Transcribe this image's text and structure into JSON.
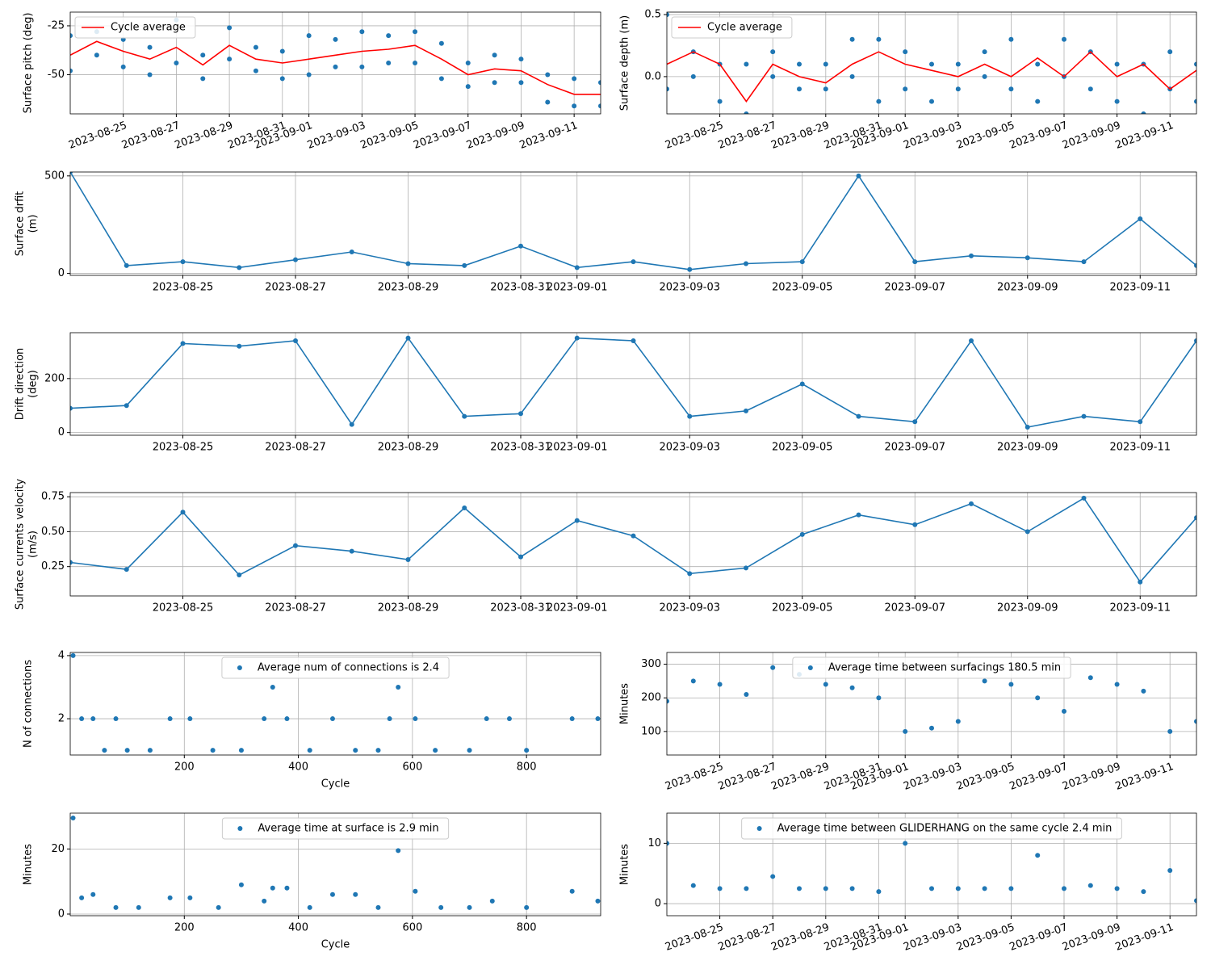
{
  "chart_data": [
    {
      "type": "line",
      "ylabel": "Surface pitch (deg)",
      "xlim": [
        "2023-08-23",
        "2023-09-12"
      ],
      "ylim": [
        -70,
        -18
      ],
      "yticks": [
        -25,
        -50
      ],
      "xticks": [
        "2023-08-25",
        "2023-08-27",
        "2023-08-29",
        "2023-08-31",
        "2023-09-01",
        "2023-09-03",
        "2023-09-05",
        "2023-09-07",
        "2023-09-09",
        "2023-09-11"
      ],
      "xtick_rotation": 20,
      "grid": true,
      "legend": "upper left",
      "series": [
        {
          "style": "markers",
          "color": "#1f77b4",
          "x": [
            "2023-08-23",
            "2023-08-23",
            "2023-08-24",
            "2023-08-24",
            "2023-08-25",
            "2023-08-25",
            "2023-08-26",
            "2023-08-26",
            "2023-08-27",
            "2023-08-27",
            "2023-08-28",
            "2023-08-28",
            "2023-08-29",
            "2023-08-29",
            "2023-08-30",
            "2023-08-30",
            "2023-08-31",
            "2023-08-31",
            "2023-09-01",
            "2023-09-01",
            "2023-09-02",
            "2023-09-02",
            "2023-09-03",
            "2023-09-03",
            "2023-09-04",
            "2023-09-04",
            "2023-09-05",
            "2023-09-05",
            "2023-09-06",
            "2023-09-06",
            "2023-09-07",
            "2023-09-07",
            "2023-09-08",
            "2023-09-08",
            "2023-09-09",
            "2023-09-09",
            "2023-09-10",
            "2023-09-10",
            "2023-09-11",
            "2023-09-11",
            "2023-09-12",
            "2023-09-12"
          ],
          "values": [
            -30,
            -48,
            -28,
            -40,
            -32,
            -46,
            -36,
            -50,
            -22,
            -44,
            -40,
            -52,
            -26,
            -42,
            -36,
            -48,
            -38,
            -52,
            -30,
            -50,
            -32,
            -46,
            -28,
            -46,
            -30,
            -44,
            -28,
            -44,
            -34,
            -52,
            -44,
            -56,
            -40,
            -54,
            -42,
            -54,
            -50,
            -64,
            -52,
            -66,
            -54,
            -66
          ]
        },
        {
          "name": "Cycle average",
          "style": "line",
          "color": "#ff0000",
          "x": [
            "2023-08-23",
            "2023-08-24",
            "2023-08-25",
            "2023-08-26",
            "2023-08-27",
            "2023-08-28",
            "2023-08-29",
            "2023-08-30",
            "2023-08-31",
            "2023-09-01",
            "2023-09-02",
            "2023-09-03",
            "2023-09-04",
            "2023-09-05",
            "2023-09-06",
            "2023-09-07",
            "2023-09-08",
            "2023-09-09",
            "2023-09-10",
            "2023-09-11",
            "2023-09-12"
          ],
          "values": [
            -40,
            -33,
            -38,
            -42,
            -36,
            -45,
            -35,
            -42,
            -44,
            -42,
            -40,
            -38,
            -37,
            -35,
            -42,
            -50,
            -47,
            -48,
            -55,
            -60,
            -60
          ]
        }
      ]
    },
    {
      "type": "line",
      "ylabel": "Surface depth (m)",
      "xlim": [
        "2023-08-23",
        "2023-09-12"
      ],
      "ylim": [
        -0.3,
        0.52
      ],
      "yticks": [
        {
          "value": 0,
          "label": "0.0"
        },
        {
          "value": 0.5,
          "label": "0.5"
        }
      ],
      "xticks": [
        "2023-08-25",
        "2023-08-27",
        "2023-08-29",
        "2023-08-31",
        "2023-09-01",
        "2023-09-03",
        "2023-09-05",
        "2023-09-07",
        "2023-09-09",
        "2023-09-11"
      ],
      "xtick_rotation": 20,
      "grid": true,
      "legend": "upper left",
      "series": [
        {
          "style": "markers",
          "color": "#1f77b4",
          "x": [
            "2023-08-23",
            "2023-08-23",
            "2023-08-24",
            "2023-08-24",
            "2023-08-25",
            "2023-08-25",
            "2023-08-26",
            "2023-08-26",
            "2023-08-27",
            "2023-08-27",
            "2023-08-28",
            "2023-08-28",
            "2023-08-29",
            "2023-08-29",
            "2023-08-30",
            "2023-08-30",
            "2023-08-31",
            "2023-08-31",
            "2023-09-01",
            "2023-09-01",
            "2023-09-02",
            "2023-09-02",
            "2023-09-03",
            "2023-09-03",
            "2023-09-04",
            "2023-09-04",
            "2023-09-05",
            "2023-09-05",
            "2023-09-06",
            "2023-09-06",
            "2023-09-07",
            "2023-09-07",
            "2023-09-08",
            "2023-09-08",
            "2023-09-09",
            "2023-09-09",
            "2023-09-10",
            "2023-09-10",
            "2023-09-11",
            "2023-09-11",
            "2023-09-12",
            "2023-09-12"
          ],
          "values": [
            0.5,
            -0.1,
            0.2,
            0,
            0.1,
            -0.2,
            0.1,
            -0.3,
            0.2,
            0,
            0.1,
            -0.1,
            0.1,
            -0.1,
            0.3,
            0,
            0.3,
            -0.2,
            0.2,
            -0.1,
            0.1,
            -0.2,
            0.1,
            -0.1,
            0.2,
            0,
            0.3,
            -0.1,
            0.1,
            -0.2,
            0.3,
            0,
            0.2,
            -0.1,
            0.1,
            -0.2,
            0.1,
            -0.3,
            0.2,
            -0.1,
            0.1,
            -0.2
          ]
        },
        {
          "name": "Cycle average",
          "style": "line",
          "color": "#ff0000",
          "x": [
            "2023-08-23",
            "2023-08-24",
            "2023-08-25",
            "2023-08-26",
            "2023-08-27",
            "2023-08-28",
            "2023-08-29",
            "2023-08-30",
            "2023-08-31",
            "2023-09-01",
            "2023-09-02",
            "2023-09-03",
            "2023-09-04",
            "2023-09-05",
            "2023-09-06",
            "2023-09-07",
            "2023-09-08",
            "2023-09-09",
            "2023-09-10",
            "2023-09-11",
            "2023-09-12"
          ],
          "values": [
            0.1,
            0.2,
            0.1,
            -0.2,
            0.1,
            0,
            -0.05,
            0.1,
            0.2,
            0.1,
            0.05,
            0,
            0.1,
            0,
            0.15,
            0,
            0.2,
            0,
            0.1,
            -0.1,
            0.05
          ]
        }
      ]
    },
    {
      "type": "line",
      "ylabel": [
        "Surface drfit",
        "(m)"
      ],
      "xlim": [
        "2023-08-23",
        "2023-09-12"
      ],
      "ylim": [
        -10,
        520
      ],
      "yticks": [
        0,
        500
      ],
      "xticks": [
        "2023-08-25",
        "2023-08-27",
        "2023-08-29",
        "2023-08-31",
        "2023-09-01",
        "2023-09-03",
        "2023-09-05",
        "2023-09-07",
        "2023-09-09",
        "2023-09-11"
      ],
      "grid": true,
      "x": [
        "2023-08-23",
        "2023-08-24",
        "2023-08-25",
        "2023-08-26",
        "2023-08-27",
        "2023-08-28",
        "2023-08-29",
        "2023-08-30",
        "2023-08-31",
        "2023-09-01",
        "2023-09-02",
        "2023-09-03",
        "2023-09-04",
        "2023-09-05",
        "2023-09-06",
        "2023-09-07",
        "2023-09-08",
        "2023-09-09",
        "2023-09-10",
        "2023-09-11",
        "2023-09-12"
      ],
      "series": [
        {
          "style": "line-markers",
          "color": "#1f77b4",
          "values": [
            520,
            40,
            60,
            30,
            70,
            110,
            50,
            40,
            140,
            30,
            60,
            20,
            50,
            60,
            500,
            60,
            90,
            80,
            60,
            280,
            40
          ]
        }
      ]
    },
    {
      "type": "line",
      "ylabel": [
        "Drift direction",
        "(deg)"
      ],
      "xlim": [
        "2023-08-23",
        "2023-09-12"
      ],
      "ylim": [
        -10,
        370
      ],
      "yticks": [
        0,
        200
      ],
      "xticks": [
        "2023-08-25",
        "2023-08-27",
        "2023-08-29",
        "2023-08-31",
        "2023-09-01",
        "2023-09-03",
        "2023-09-05",
        "2023-09-07",
        "2023-09-09",
        "2023-09-11"
      ],
      "grid": true,
      "x": [
        "2023-08-23",
        "2023-08-24",
        "2023-08-25",
        "2023-08-26",
        "2023-08-27",
        "2023-08-28",
        "2023-08-29",
        "2023-08-30",
        "2023-08-31",
        "2023-09-01",
        "2023-09-02",
        "2023-09-03",
        "2023-09-04",
        "2023-09-05",
        "2023-09-06",
        "2023-09-07",
        "2023-09-08",
        "2023-09-09",
        "2023-09-10",
        "2023-09-11",
        "2023-09-12"
      ],
      "series": [
        {
          "style": "line-markers",
          "color": "#1f77b4",
          "values": [
            90,
            100,
            330,
            320,
            340,
            30,
            350,
            60,
            70,
            350,
            340,
            60,
            80,
            180,
            60,
            40,
            340,
            20,
            60,
            40,
            340
          ]
        }
      ]
    },
    {
      "type": "line",
      "ylabel": [
        "Surface currents velocity",
        "(m/s)"
      ],
      "xlim": [
        "2023-08-23",
        "2023-09-12"
      ],
      "ylim": [
        0.04,
        0.78
      ],
      "yticks": [
        0.25,
        {
          "value": 0.5,
          "label": "0.50"
        },
        0.75
      ],
      "xticks": [
        "2023-08-25",
        "2023-08-27",
        "2023-08-29",
        "2023-08-31",
        "2023-09-01",
        "2023-09-03",
        "2023-09-05",
        "2023-09-07",
        "2023-09-09",
        "2023-09-11"
      ],
      "grid": true,
      "x": [
        "2023-08-23",
        "2023-08-24",
        "2023-08-25",
        "2023-08-26",
        "2023-08-27",
        "2023-08-28",
        "2023-08-29",
        "2023-08-30",
        "2023-08-31",
        "2023-09-01",
        "2023-09-02",
        "2023-09-03",
        "2023-09-04",
        "2023-09-05",
        "2023-09-06",
        "2023-09-07",
        "2023-09-08",
        "2023-09-09",
        "2023-09-10",
        "2023-09-11",
        "2023-09-12"
      ],
      "series": [
        {
          "style": "line-markers",
          "color": "#1f77b4",
          "values": [
            0.28,
            0.23,
            0.64,
            0.19,
            0.4,
            0.36,
            0.3,
            0.67,
            0.32,
            0.58,
            0.47,
            0.2,
            0.24,
            0.48,
            0.62,
            0.55,
            0.7,
            0.5,
            0.74,
            0.14,
            0.6
          ]
        }
      ]
    },
    {
      "type": "scatter",
      "ylabel": "N of connections",
      "xlabel": "Cycle",
      "xlim": [
        0,
        930
      ],
      "xticks": [
        200,
        400,
        600,
        800
      ],
      "ylim": [
        0.85,
        4.1
      ],
      "yticks": [
        2,
        4
      ],
      "grid": true,
      "legend": "upper center",
      "x": [
        5,
        20,
        40,
        60,
        80,
        100,
        140,
        175,
        210,
        250,
        300,
        340,
        355,
        380,
        420,
        460,
        500,
        540,
        560,
        575,
        605,
        640,
        700,
        730,
        770,
        800,
        880,
        925
      ],
      "series": [
        {
          "name": "Average num of connections is 2.4",
          "style": "markers",
          "color": "#1f77b4",
          "values": [
            4,
            2,
            2,
            1,
            2,
            1,
            1,
            2,
            2,
            1,
            1,
            2,
            3,
            2,
            1,
            2,
            1,
            1,
            2,
            3,
            2,
            1,
            1,
            2,
            2,
            1,
            2,
            2
          ]
        }
      ]
    },
    {
      "type": "scatter",
      "ylabel": "Minutes",
      "xlim": [
        "2023-08-23",
        "2023-09-12"
      ],
      "ylim": [
        30,
        335
      ],
      "yticks": [
        100,
        200,
        300
      ],
      "xticks": [
        "2023-08-25",
        "2023-08-27",
        "2023-08-29",
        "2023-08-31",
        "2023-09-01",
        "2023-09-03",
        "2023-09-05",
        "2023-09-07",
        "2023-09-09",
        "2023-09-11"
      ],
      "xtick_rotation": 20,
      "grid": true,
      "legend": "upper center",
      "x": [
        "2023-08-23",
        "2023-08-24",
        "2023-08-25",
        "2023-08-26",
        "2023-08-27",
        "2023-08-28",
        "2023-08-29",
        "2023-08-30",
        "2023-08-31",
        "2023-09-01",
        "2023-09-02",
        "2023-09-03",
        "2023-09-04",
        "2023-09-05",
        "2023-09-06",
        "2023-09-07",
        "2023-09-08",
        "2023-09-09",
        "2023-09-10",
        "2023-09-11",
        "2023-09-12"
      ],
      "series": [
        {
          "name": "Average time between surfacings 180.5 min",
          "style": "markers",
          "color": "#1f77b4",
          "values": [
            190,
            250,
            240,
            210,
            290,
            270,
            240,
            230,
            200,
            100,
            110,
            130,
            250,
            240,
            200,
            160,
            260,
            240,
            220,
            100,
            130
          ]
        }
      ]
    },
    {
      "type": "scatter",
      "ylabel": "Minutes",
      "xlabel": "Cycle",
      "xlim": [
        0,
        930
      ],
      "xticks": [
        200,
        400,
        600,
        800
      ],
      "ylim": [
        -0.5,
        31
      ],
      "yticks": [
        0,
        20
      ],
      "grid": true,
      "legend": "upper center",
      "x": [
        5,
        20,
        40,
        80,
        120,
        175,
        210,
        260,
        300,
        340,
        355,
        380,
        420,
        460,
        500,
        540,
        575,
        605,
        650,
        700,
        740,
        800,
        880,
        925
      ],
      "series": [
        {
          "name": "Average time at surface is 2.9 min",
          "style": "markers",
          "color": "#1f77b4",
          "values": [
            29.5,
            5,
            6,
            2,
            2,
            5,
            5,
            2,
            9,
            4,
            8,
            8,
            2,
            6,
            6,
            2,
            19.5,
            7,
            2,
            2,
            4,
            2,
            7,
            4
          ]
        }
      ]
    },
    {
      "type": "scatter",
      "ylabel": "Minutes",
      "xlim": [
        "2023-08-23",
        "2023-09-12"
      ],
      "ylim": [
        -2,
        15
      ],
      "yticks": [
        0,
        10
      ],
      "xticks": [
        "2023-08-25",
        "2023-08-27",
        "2023-08-29",
        "2023-08-31",
        "2023-09-01",
        "2023-09-03",
        "2023-09-05",
        "2023-09-07",
        "2023-09-09",
        "2023-09-11"
      ],
      "xtick_rotation": 20,
      "grid": true,
      "legend": "upper center",
      "x": [
        "2023-08-23",
        "2023-08-24",
        "2023-08-25",
        "2023-08-26",
        "2023-08-27",
        "2023-08-28",
        "2023-08-29",
        "2023-08-30",
        "2023-08-31",
        "2023-09-01",
        "2023-09-02",
        "2023-09-03",
        "2023-09-04",
        "2023-09-05",
        "2023-09-06",
        "2023-09-07",
        "2023-09-08",
        "2023-09-09",
        "2023-09-10",
        "2023-09-11",
        "2023-09-12"
      ],
      "series": [
        {
          "name": "Average time between GLIDERHANG on the same cycle 2.4 min",
          "style": "markers",
          "color": "#1f77b4",
          "values": [
            10,
            3,
            2.5,
            2.5,
            4.5,
            2.5,
            2.5,
            2.5,
            2,
            10,
            2.5,
            2.5,
            2.5,
            2.5,
            8,
            2.5,
            3,
            2.5,
            2,
            5.5,
            0.5
          ]
        }
      ]
    }
  ]
}
